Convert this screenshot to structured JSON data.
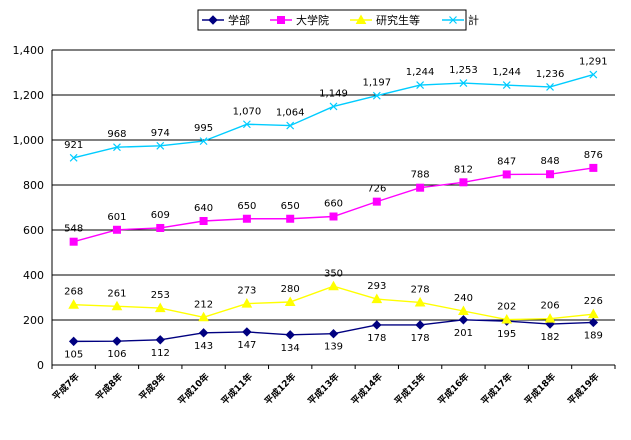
{
  "chart_data": {
    "type": "line",
    "title": "",
    "xlabel": "",
    "ylabel": "",
    "categories": [
      "平成7年",
      "平成8年",
      "平成9年",
      "平成10年",
      "平成11年",
      "平成12年",
      "平成13年",
      "平成14年",
      "平成15年",
      "平成16年",
      "平成17年",
      "平成18年",
      "平成19年"
    ],
    "ylim": [
      0,
      1400
    ],
    "yticks": [
      0,
      200,
      400,
      600,
      800,
      1000,
      1200,
      1400
    ],
    "ytick_labels": [
      "0",
      "200",
      "400",
      "600",
      "800",
      "1,000",
      "1,200",
      "1,400"
    ],
    "grid": "horizontal",
    "legend_position": "top",
    "series": [
      {
        "name": "学部",
        "color": "#000080",
        "marker": "diamond",
        "values": [
          105,
          106,
          112,
          143,
          147,
          134,
          139,
          178,
          178,
          201,
          195,
          182,
          189
        ],
        "labels": [
          "105",
          "106",
          "112",
          "143",
          "147",
          "134",
          "139",
          "178",
          "178",
          "201",
          "195",
          "182",
          "189"
        ]
      },
      {
        "name": "大学院",
        "color": "#FF00FF",
        "marker": "square",
        "values": [
          548,
          601,
          609,
          640,
          650,
          650,
          660,
          726,
          788,
          812,
          847,
          848,
          876
        ],
        "labels": [
          "548",
          "601",
          "609",
          "640",
          "650",
          "650",
          "660",
          "726",
          "788",
          "812",
          "847",
          "848",
          "876"
        ]
      },
      {
        "name": "研究生等",
        "color": "#FFFF00",
        "marker": "triangle",
        "values": [
          268,
          261,
          253,
          212,
          273,
          280,
          350,
          293,
          278,
          240,
          202,
          206,
          226
        ],
        "labels": [
          "268",
          "261",
          "253",
          "212",
          "273",
          "280",
          "350",
          "293",
          "278",
          "240",
          "202",
          "206",
          "226"
        ]
      },
      {
        "name": "計",
        "color": "#00CCFF",
        "marker": "x",
        "values": [
          921,
          968,
          974,
          995,
          1070,
          1064,
          1149,
          1197,
          1244,
          1253,
          1244,
          1236,
          1291
        ],
        "labels": [
          "921",
          "968",
          "974",
          "995",
          "1,070",
          "1,064",
          "1,149",
          "1,197",
          "1,244",
          "1,253",
          "1,244",
          "1,236",
          "1,291"
        ]
      }
    ]
  }
}
